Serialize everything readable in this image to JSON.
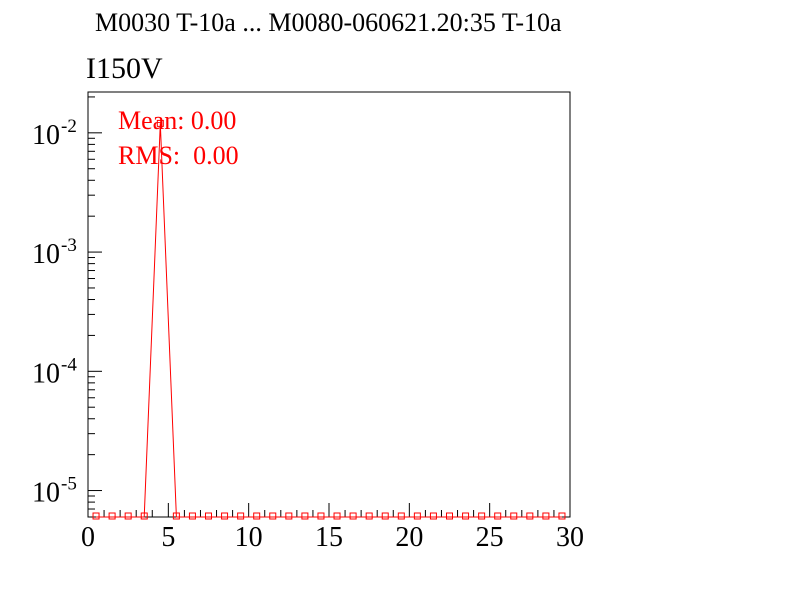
{
  "header_title": "M0030 T-10a ... M0080-060621.20:35 T-10a",
  "colors": {
    "series": "#ff0000",
    "axes": "#000000",
    "background": "#ffffff"
  },
  "chart_data": {
    "type": "line",
    "title": "I150V",
    "xlabel": "",
    "ylabel": "",
    "xlim": [
      0,
      30
    ],
    "ylim": [
      6e-06,
      0.022
    ],
    "yscale": "log",
    "grid": false,
    "x_ticks": [
      0,
      5,
      10,
      15,
      20,
      25,
      30
    ],
    "x_tick_labels": [
      "0",
      "5",
      "10",
      "15",
      "20",
      "25",
      "30"
    ],
    "y_ticks": [
      0.01,
      0.001,
      0.0001,
      1e-05
    ],
    "y_tick_labels": [
      {
        "base": "10",
        "exp": "-2"
      },
      {
        "base": "10",
        "exp": "-3"
      },
      {
        "base": "10",
        "exp": "-4"
      },
      {
        "base": "10",
        "exp": "-5"
      }
    ],
    "stats": {
      "mean_label": "Mean:",
      "mean_value": "0.00",
      "rms_label": "RMS:",
      "rms_value": "0.00"
    },
    "series": [
      {
        "x": [
          0.5,
          1.5,
          2.5,
          3.5,
          4.5,
          5.5,
          6.5,
          7.5,
          8.5,
          9.5,
          10.5,
          11.5,
          12.5,
          13.5,
          14.5,
          15.5,
          16.5,
          17.5,
          18.5,
          19.5,
          20.5,
          21.5,
          22.5,
          23.5,
          24.5,
          25.5,
          26.5,
          27.5,
          28.5,
          29.5
        ],
        "y": [
          0,
          0,
          0,
          0,
          0.012,
          0,
          0,
          0,
          0,
          0,
          0,
          0,
          0,
          0,
          0,
          0,
          0,
          0,
          0,
          0,
          0,
          0,
          0,
          0,
          0,
          0,
          0,
          0,
          0,
          0
        ]
      }
    ]
  }
}
